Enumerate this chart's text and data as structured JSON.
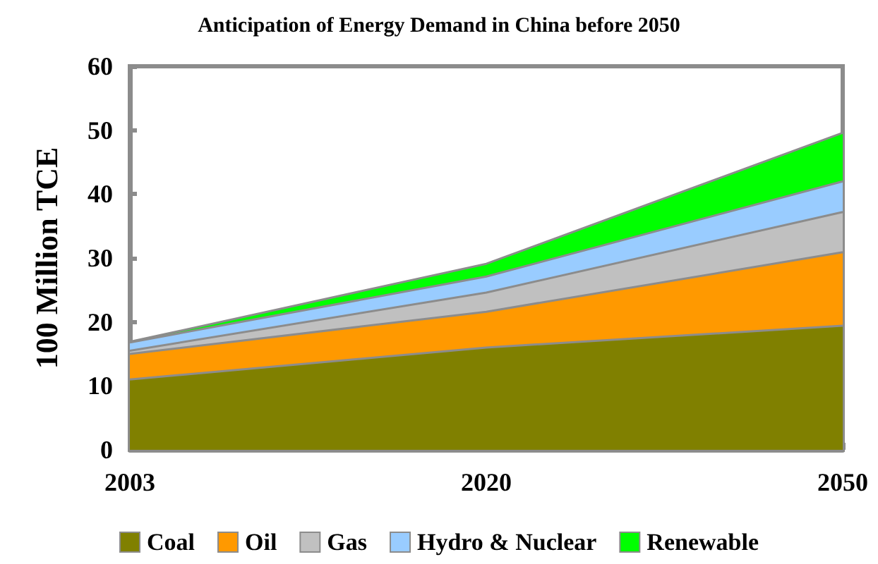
{
  "chart_data": {
    "type": "area",
    "title": "Anticipation of Energy Demand in China before 2050",
    "ylabel": "100 Million TCE",
    "categories": [
      "2003",
      "2020",
      "2050"
    ],
    "stacked": true,
    "ylim": [
      0,
      60
    ],
    "yticks": [
      0,
      10,
      20,
      30,
      40,
      50,
      60
    ],
    "legend": "bottom",
    "series": [
      {
        "name": "Coal",
        "color": "#808000",
        "values": [
          11,
          16,
          19.4
        ]
      },
      {
        "name": "Oil",
        "color": "#ff9900",
        "values": [
          4,
          5.6,
          11.5
        ]
      },
      {
        "name": "Gas",
        "color": "#c0c0c0",
        "values": [
          0.5,
          3,
          6.3
        ]
      },
      {
        "name": "Hydro & Nuclear",
        "color": "#99ccff",
        "values": [
          1.3,
          2.5,
          4.8
        ]
      },
      {
        "name": "Renewable",
        "color": "#00ff00",
        "values": [
          0.1,
          2,
          7.6
        ]
      }
    ]
  }
}
